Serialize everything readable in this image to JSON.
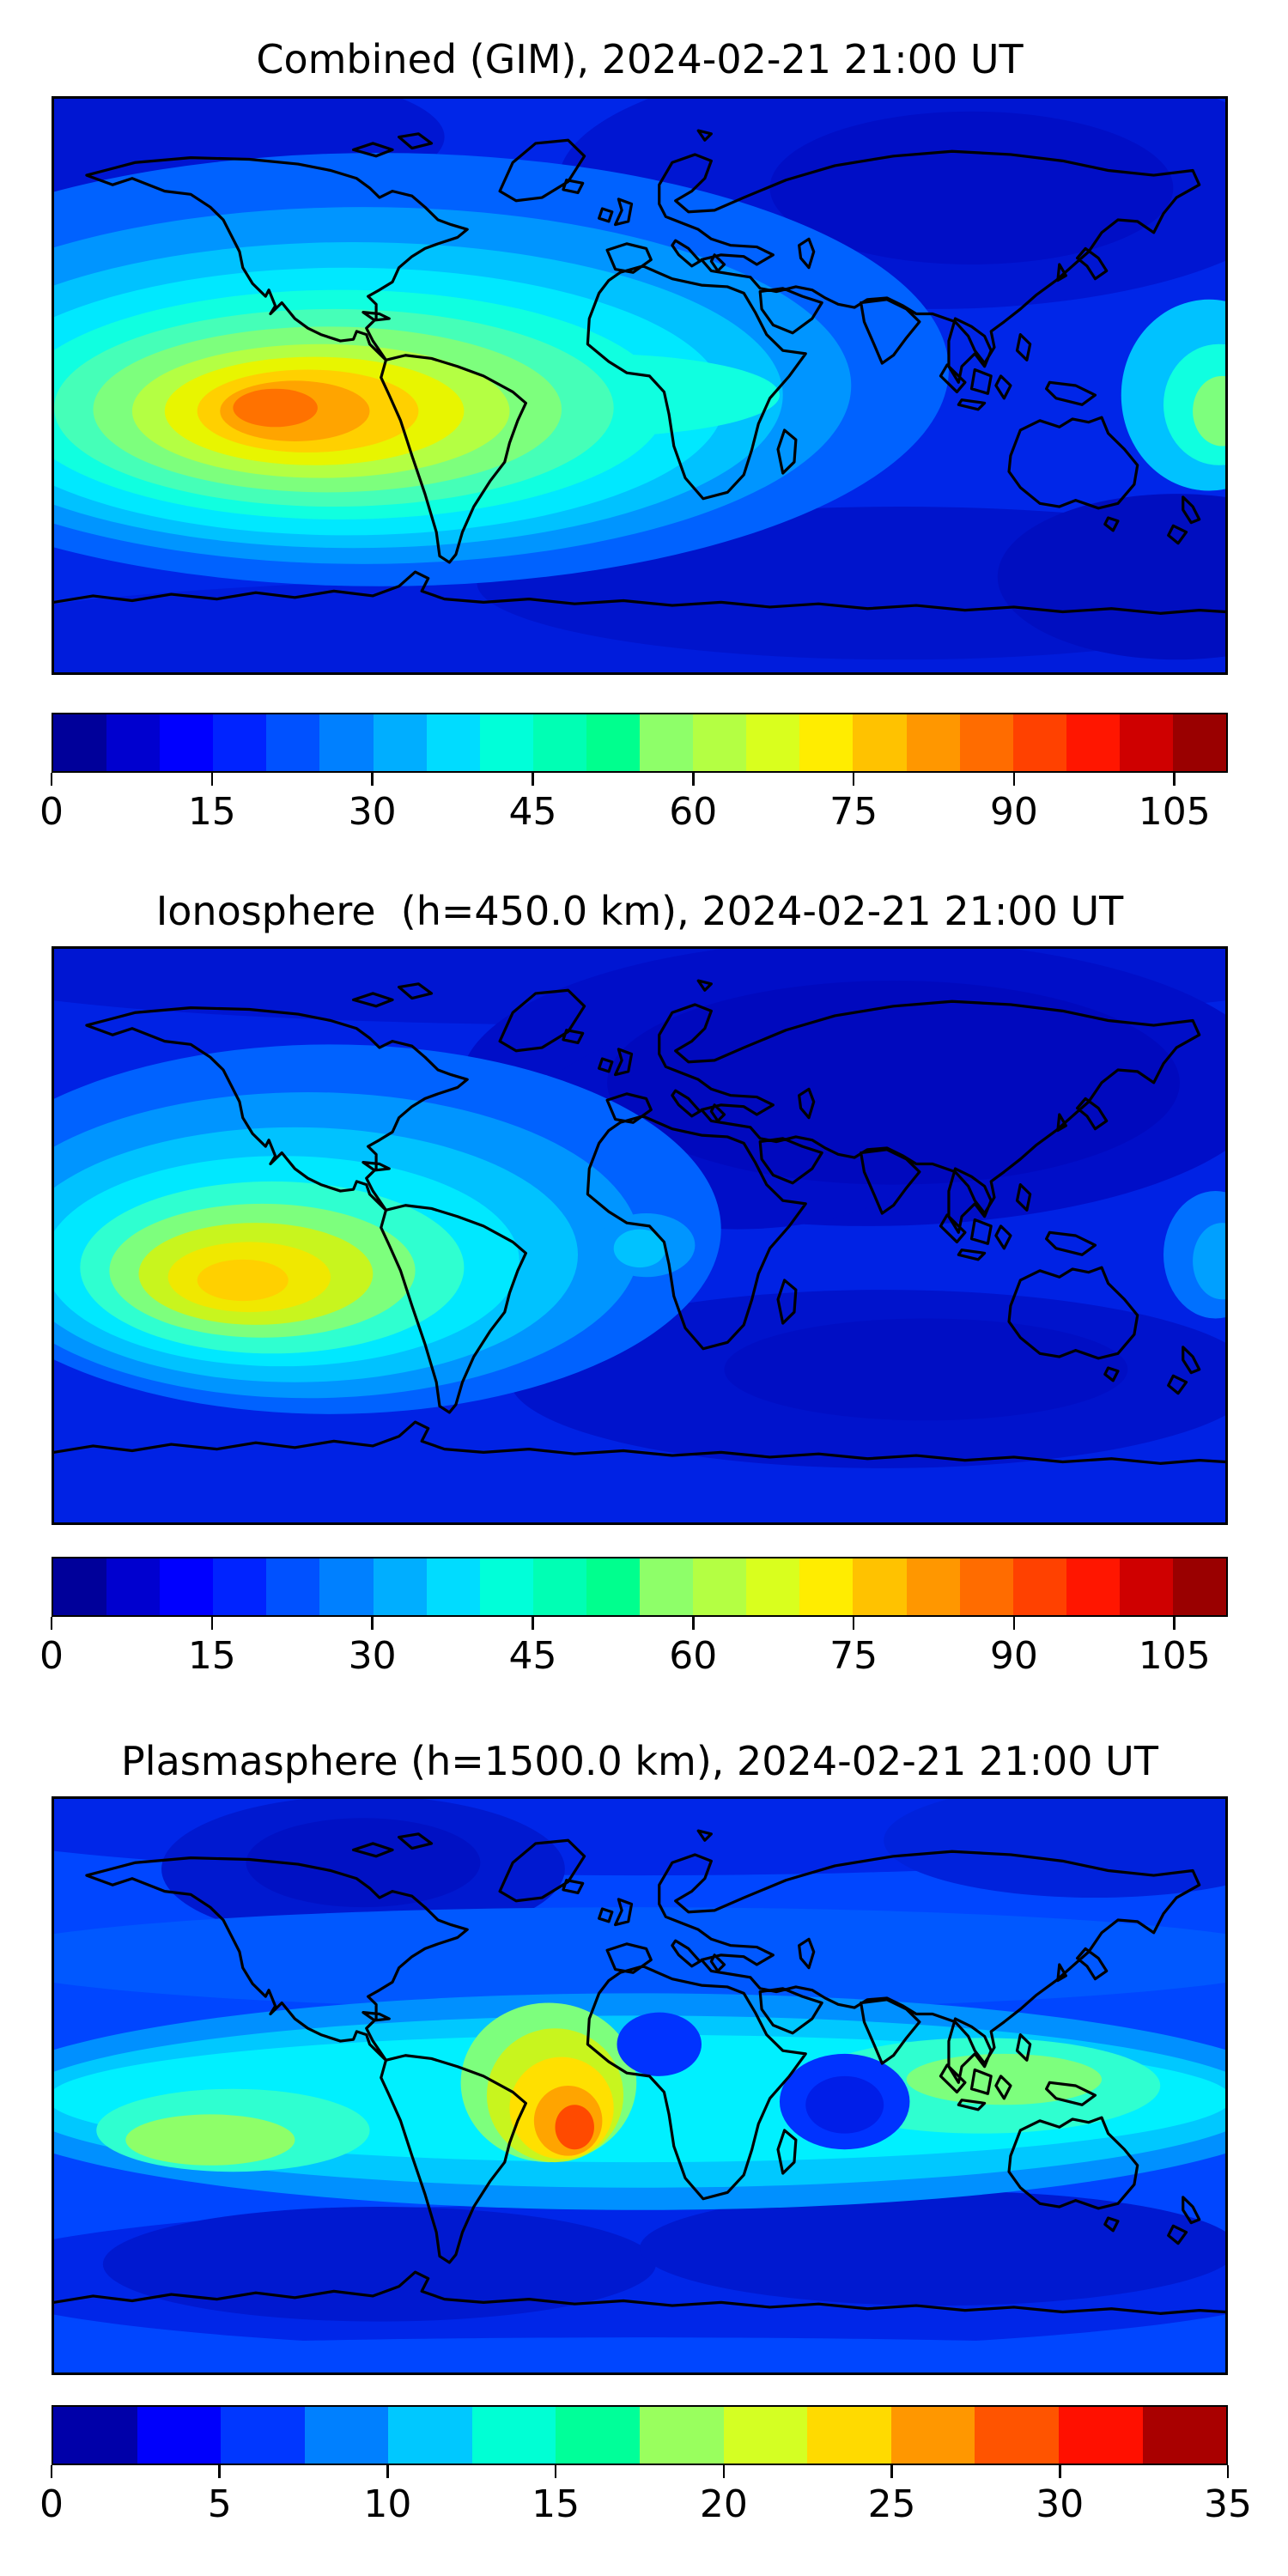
{
  "figure": {
    "background": "#ffffff",
    "colormap": "jet",
    "coastline_color": "#000000"
  },
  "panels": [
    {
      "title": "Combined (GIM), 2024-02-21 21:00 UT",
      "colorbar": {
        "min": 0,
        "max": 110,
        "segment_colors": [
          "#00009A",
          "#0000CF",
          "#0000FF",
          "#0023FF",
          "#0051FF",
          "#0080FF",
          "#00AEFF",
          "#00DCFF",
          "#00FFD9",
          "#00FFB4",
          "#00FF8E",
          "#8EFF69",
          "#B4FF43",
          "#D9FF1E",
          "#FFED00",
          "#FFC200",
          "#FF9700",
          "#FF6C00",
          "#FF4100",
          "#FF1600",
          "#CF0000",
          "#9A0000"
        ],
        "ticks": [
          {
            "label": "0",
            "pct": 0
          },
          {
            "label": "15",
            "pct": 13.636
          },
          {
            "label": "30",
            "pct": 27.273
          },
          {
            "label": "45",
            "pct": 40.909
          },
          {
            "label": "60",
            "pct": 54.545
          },
          {
            "label": "75",
            "pct": 68.182
          },
          {
            "label": "90",
            "pct": 81.818
          },
          {
            "label": "105",
            "pct": 95.455
          }
        ]
      }
    },
    {
      "title": "Ionosphere  (h=450.0 km), 2024-02-21 21:00 UT",
      "colorbar": {
        "min": 0,
        "max": 110,
        "segment_colors": [
          "#00009A",
          "#0000CF",
          "#0000FF",
          "#0023FF",
          "#0051FF",
          "#0080FF",
          "#00AEFF",
          "#00DCFF",
          "#00FFD9",
          "#00FFB4",
          "#00FF8E",
          "#8EFF69",
          "#B4FF43",
          "#D9FF1E",
          "#FFED00",
          "#FFC200",
          "#FF9700",
          "#FF6C00",
          "#FF4100",
          "#FF1600",
          "#CF0000",
          "#9A0000"
        ],
        "ticks": [
          {
            "label": "0",
            "pct": 0
          },
          {
            "label": "15",
            "pct": 13.636
          },
          {
            "label": "30",
            "pct": 27.273
          },
          {
            "label": "45",
            "pct": 40.909
          },
          {
            "label": "60",
            "pct": 54.545
          },
          {
            "label": "75",
            "pct": 68.182
          },
          {
            "label": "90",
            "pct": 81.818
          },
          {
            "label": "105",
            "pct": 95.455
          }
        ]
      }
    },
    {
      "title": "Plasmasphere (h=1500.0 km), 2024-02-21 21:00 UT",
      "colorbar": {
        "min": 0,
        "max": 35,
        "segment_colors": [
          "#0000A9",
          "#0000FC",
          "#0037FF",
          "#0080FF",
          "#00C8FF",
          "#00FFD4",
          "#00FF99",
          "#99FF5E",
          "#D4FF23",
          "#FFDA00",
          "#FF9700",
          "#FF5400",
          "#FF1000",
          "#A90000"
        ],
        "ticks": [
          {
            "label": "0",
            "pct": 0
          },
          {
            "label": "5",
            "pct": 14.286
          },
          {
            "label": "10",
            "pct": 28.571
          },
          {
            "label": "15",
            "pct": 42.857
          },
          {
            "label": "20",
            "pct": 57.143
          },
          {
            "label": "25",
            "pct": 71.429
          },
          {
            "label": "30",
            "pct": 85.714
          },
          {
            "label": "35",
            "pct": 100
          }
        ]
      }
    }
  ],
  "chart_data": [
    {
      "type": "heatmap",
      "subtype": "filled-contour-world-map",
      "title": "Combined (GIM), 2024-02-21 21:00 UT",
      "projection": "equirectangular",
      "lon_range": [
        -180,
        180
      ],
      "lat_range": [
        -90,
        90
      ],
      "colormap": "jet",
      "value_range": [
        0,
        110
      ],
      "contour_interval": 5,
      "colorbar_ticks": [
        0,
        15,
        30,
        45,
        60,
        75,
        90,
        105
      ],
      "features": [
        {
          "name": "daytime maximum",
          "lon": -105,
          "lat": -8,
          "approx_value": 100
        },
        {
          "name": "equatorial ridge over Atlantic/Africa",
          "lon": -10,
          "lat": -2,
          "approx_value": 45
        },
        {
          "name": "western Pacific equatorial enhancement",
          "lon": 178,
          "lat": -5,
          "approx_value": 50
        },
        {
          "name": "night-side minimum over northern Asia",
          "lon": 95,
          "lat": 62,
          "approx_value": 8
        },
        {
          "name": "southern high-latitude minimum",
          "lon": 120,
          "lat": -60,
          "approx_value": 10
        }
      ]
    },
    {
      "type": "heatmap",
      "subtype": "filled-contour-world-map",
      "title": "Ionosphere  (h=450.0 km), 2024-02-21 21:00 UT",
      "projection": "equirectangular",
      "lon_range": [
        -180,
        180
      ],
      "lat_range": [
        -90,
        90
      ],
      "colormap": "jet",
      "value_range": [
        0,
        110
      ],
      "contour_interval": 5,
      "colorbar_ticks": [
        0,
        15,
        30,
        45,
        60,
        75,
        90,
        105
      ],
      "features": [
        {
          "name": "daytime maximum over SE Pacific",
          "lon": -122,
          "lat": -14,
          "approx_value": 78
        },
        {
          "name": "night-side minimum over Europe/Asia",
          "lon": 75,
          "lat": 48,
          "approx_value": 4
        },
        {
          "name": "weak equatorial patch off West Africa",
          "lon": 2,
          "lat": -4,
          "approx_value": 25
        },
        {
          "name": "southern Indian Ocean minimum",
          "lon": 85,
          "lat": -45,
          "approx_value": 8
        }
      ]
    },
    {
      "type": "heatmap",
      "subtype": "filled-contour-world-map",
      "title": "Plasmasphere (h=1500.0 km), 2024-02-21 21:00 UT",
      "projection": "equirectangular",
      "lon_range": [
        -180,
        180
      ],
      "lat_range": [
        -90,
        90
      ],
      "colormap": "jet",
      "value_range": [
        0,
        35
      ],
      "contour_interval": 2.5,
      "colorbar_ticks": [
        0,
        5,
        10,
        15,
        20,
        25,
        30,
        35
      ],
      "features": [
        {
          "name": "equatorial maximum near Gulf of Guinea",
          "lon": -20,
          "lat": -13,
          "approx_value": 32
        },
        {
          "name": "equatorial band (global)",
          "lat": 0,
          "approx_value": 15
        },
        {
          "name": "minimum over Arabian Sea",
          "lon": 63,
          "lat": -5,
          "approx_value": 5
        },
        {
          "name": "minimum over northern Canada",
          "lon": -85,
          "lat": 70,
          "approx_value": 3
        },
        {
          "name": "southern high-latitude minimum band",
          "lat": -60,
          "approx_value": 5
        }
      ]
    }
  ]
}
